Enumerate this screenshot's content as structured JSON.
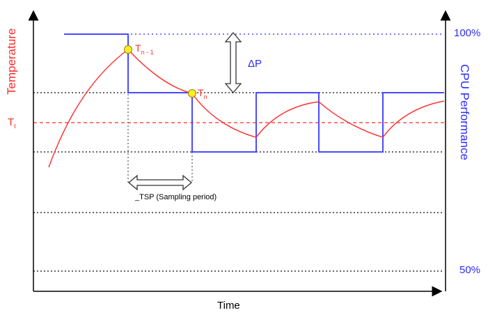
{
  "labels": {
    "left_axis": "Temperature",
    "right_axis": "CPU Performance",
    "x_axis": "Time",
    "perf_max": "100%",
    "perf_min": "50%",
    "threshold": "T",
    "threshold_sub": "t",
    "prev_sample": "T",
    "prev_sample_sub": "n - 1",
    "curr_sample": "T",
    "curr_sample_sub": "n",
    "delta": "ΔP",
    "sampling": "_TSP (Sampling period)"
  },
  "colors": {
    "temperature": "#ff2a2a",
    "performance": "#4a4aff",
    "label_blue": "#2a2aff",
    "grid": "#333333",
    "marker": "#ffee22"
  }
}
